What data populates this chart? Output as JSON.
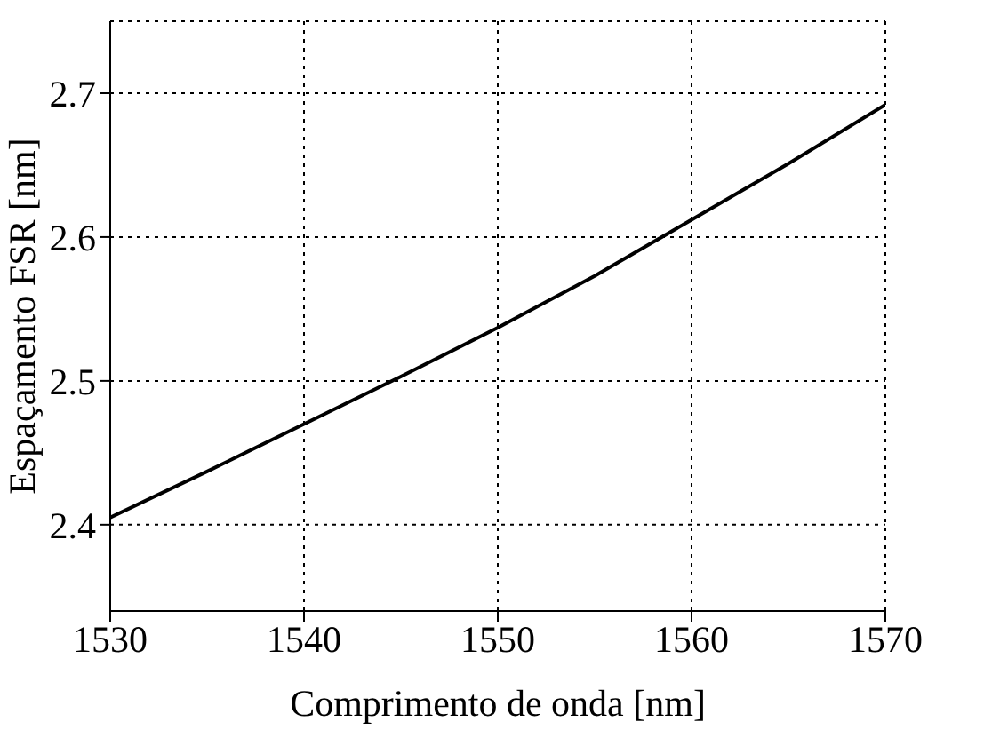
{
  "chart_data": {
    "type": "line",
    "xlabel": "Comprimento de onda [nm]",
    "ylabel": "Espaçamento FSR [nm]",
    "x": [
      1530,
      1535,
      1540,
      1545,
      1550,
      1555,
      1560,
      1565,
      1570
    ],
    "series": [
      {
        "color": "#000000",
        "values": [
          2.405,
          2.437,
          2.47,
          2.503,
          2.537,
          2.573,
          2.612,
          2.651,
          2.692
        ]
      }
    ],
    "xlim": [
      1530,
      1570
    ],
    "xticks": [
      1530,
      1540,
      1550,
      1560,
      1570
    ],
    "ylim": [
      2.34,
      2.75
    ],
    "yticks": [
      2.4,
      2.5,
      2.6,
      2.7
    ],
    "grid": true,
    "marker": "none",
    "line_style": "solid"
  }
}
